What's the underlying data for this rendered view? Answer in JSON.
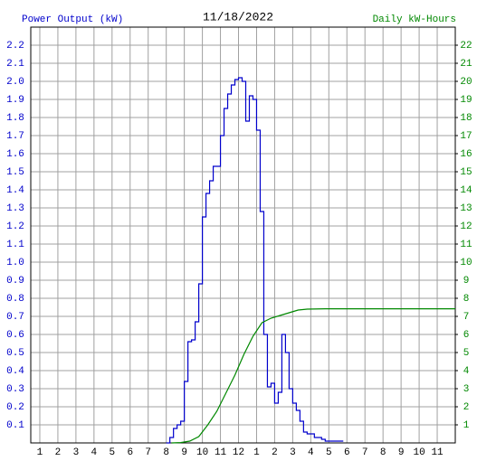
{
  "chart_data": {
    "type": "line",
    "title": "11/18/2022",
    "y_label": "Power Output (kW)",
    "y2_label": "Daily kW-Hours",
    "grid": true,
    "xlim": [
      0.5,
      24
    ],
    "xticks": [
      1,
      2,
      3,
      4,
      5,
      6,
      7,
      8,
      9,
      10,
      11,
      12,
      {
        "value": 13,
        "label": "1"
      },
      {
        "value": 14,
        "label": "2"
      },
      {
        "value": 15,
        "label": "3"
      },
      {
        "value": 16,
        "label": "4"
      },
      {
        "value": 17,
        "label": "5"
      },
      {
        "value": 18,
        "label": "6"
      },
      {
        "value": 19,
        "label": "7"
      },
      {
        "value": 20,
        "label": "8"
      },
      {
        "value": 21,
        "label": "9"
      },
      {
        "value": 22,
        "label": "10"
      },
      {
        "value": 23,
        "label": "11"
      }
    ],
    "ylim": [
      0,
      2.3
    ],
    "yticks": [
      0.1,
      0.2,
      0.3,
      0.4,
      0.5,
      0.6,
      0.7,
      0.8,
      0.9,
      {
        "value": 1,
        "label": "1.0"
      },
      1.1,
      1.2,
      1.3,
      1.4,
      1.5,
      1.6,
      1.7,
      1.8,
      1.9,
      {
        "value": 2,
        "label": "2.0"
      },
      2.1,
      2.2
    ],
    "y2lim": [
      0,
      23
    ],
    "y2ticks": [
      1,
      2,
      3,
      4,
      5,
      6,
      7,
      8,
      9,
      10,
      11,
      12,
      13,
      14,
      15,
      16,
      17,
      18,
      19,
      20,
      21,
      22
    ],
    "series": [
      {
        "color": "#0000cc",
        "drawstyle": "steps",
        "x": [
          8.0,
          8.2,
          8.4,
          8.6,
          8.8,
          9.0,
          9.2,
          9.4,
          9.6,
          9.8,
          10.0,
          10.2,
          10.4,
          10.6,
          10.8,
          11.0,
          11.2,
          11.4,
          11.6,
          11.8,
          12.0,
          12.2,
          12.4,
          12.6,
          12.8,
          13.0,
          13.2,
          13.4,
          13.6,
          13.8,
          14.0,
          14.2,
          14.4,
          14.6,
          14.8,
          15.0,
          15.2,
          15.4,
          15.6,
          15.8,
          16.0,
          16.2,
          16.4,
          16.6,
          16.8,
          17.0,
          17.2,
          17.4,
          17.6,
          17.8
        ],
        "values": [
          0,
          0.03,
          0.08,
          0.1,
          0.12,
          0.34,
          0.56,
          0.57,
          0.67,
          0.88,
          1.25,
          1.38,
          1.45,
          1.53,
          1.53,
          1.7,
          1.85,
          1.93,
          1.98,
          2.01,
          2.02,
          2.0,
          1.78,
          1.92,
          1.9,
          1.73,
          1.28,
          0.6,
          0.31,
          0.33,
          0.22,
          0.28,
          0.6,
          0.5,
          0.3,
          0.22,
          0.18,
          0.12,
          0.06,
          0.05,
          0.05,
          0.03,
          0.03,
          0.02,
          0.01,
          0.01,
          0.01,
          0.01,
          0.01,
          0.01
        ]
      },
      {
        "color": "#008800",
        "axis": "y2",
        "x": [
          8.3,
          8.8,
          9.3,
          9.8,
          10.3,
          10.8,
          11.3,
          11.8,
          12.3,
          12.8,
          13.3,
          13.8,
          14.3,
          14.8,
          15.3,
          15.8,
          16.8,
          24
        ],
        "values": [
          0,
          0.02,
          0.1,
          0.35,
          1.0,
          1.75,
          2.75,
          3.75,
          4.9,
          5.9,
          6.65,
          6.9,
          7.05,
          7.2,
          7.35,
          7.4,
          7.42,
          7.42
        ]
      }
    ]
  }
}
